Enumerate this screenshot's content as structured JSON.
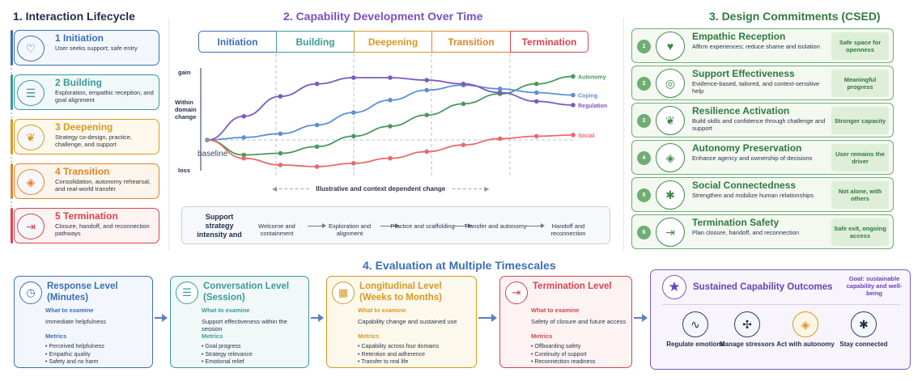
{
  "lifecycle": {
    "title": "1. Interaction Lifecycle",
    "stages": [
      {
        "name": "1 Initiation",
        "desc": "User seeks support; safe entry",
        "color": "#3a6fb8",
        "icon": "hearts-icon"
      },
      {
        "name": "2 Building",
        "desc": "Exploration, empathic reception, and goal alignment",
        "color": "#3a9a9b",
        "icon": "chat-bubbles-icon"
      },
      {
        "name": "3 Deepening",
        "desc": "Strategy co-design, practice, challenge, and support",
        "color": "#d89a1f",
        "icon": "seedling-icon"
      },
      {
        "name": "4 Transition",
        "desc": "Consolidation, autonomy rehearsal, and real-world transfer",
        "color": "#e2842c",
        "icon": "compass-icon"
      },
      {
        "name": "5 Termination",
        "desc": "Closure, handoff, and reconnection pathways",
        "color": "#d9434e",
        "icon": "exit-door-icon"
      }
    ]
  },
  "development": {
    "title": "2. Capability Development Over Time",
    "phases": [
      {
        "name": "Initiation",
        "color": "#3a6fb8"
      },
      {
        "name": "Building",
        "color": "#3a9a9b"
      },
      {
        "name": "Deepening",
        "color": "#d89a1f"
      },
      {
        "name": "Transition",
        "color": "#e2842c"
      },
      {
        "name": "Termination",
        "color": "#d9434e"
      }
    ],
    "y_gain": "gain",
    "y_label": "Within domain change",
    "y_loss": "loss",
    "baseline": "baseline",
    "footnote": "Illustrative and context dependent change",
    "strategy_label": "Support strategy intensity and",
    "strategies": [
      "Welcome and containment",
      "Exploration and alignment",
      "Practice and scaffolding",
      "Transfer and autonomy",
      "Handoff and reconnection"
    ]
  },
  "chart_data": {
    "type": "line",
    "x": [
      0,
      1,
      2,
      3,
      4,
      5,
      6,
      7,
      8,
      9,
      10
    ],
    "ylim": [
      -1,
      1
    ],
    "series": [
      {
        "name": "Autonomy",
        "color": "#4a9a5c",
        "values": [
          0,
          -0.18,
          -0.16,
          -0.08,
          0.06,
          0.22,
          0.4,
          0.58,
          0.74,
          0.9,
          1.02
        ]
      },
      {
        "name": "Coping",
        "color": "#5b8fd8",
        "values": [
          0,
          0.04,
          0.1,
          0.24,
          0.44,
          0.64,
          0.8,
          0.88,
          0.82,
          0.76,
          0.72
        ]
      },
      {
        "name": "Regulation",
        "color": "#7a5bc0",
        "values": [
          0,
          0.38,
          0.7,
          0.9,
          1.0,
          1.0,
          0.96,
          0.9,
          0.76,
          0.62,
          0.56
        ]
      },
      {
        "name": "Social",
        "color": "#e86a6a",
        "values": [
          0,
          -0.22,
          -0.3,
          -0.32,
          -0.28,
          -0.22,
          -0.14,
          -0.06,
          0.02,
          0.06,
          0.08
        ]
      }
    ]
  },
  "commitments": {
    "title": "3. Design Commitments (CSED)",
    "items": [
      {
        "num": "1",
        "name": "Empathic Reception",
        "desc": "Affirm experiences; reduce shame and isolation",
        "outcome": "Safe space for openness",
        "icon": "heart-hand-icon"
      },
      {
        "num": "2",
        "name": "Support Effectiveness",
        "desc": "Evidence-based, tailored, and context-sensitive help",
        "outcome": "Meaningful progress",
        "icon": "target-icon"
      },
      {
        "num": "3",
        "name": "Resilience Activation",
        "desc": "Build skills and confidence through challenge and support",
        "outcome": "Stronger capacity",
        "icon": "sprout-icon"
      },
      {
        "num": "4",
        "name": "Autonomy Preservation",
        "desc": "Enhance agency and ownership of decisions",
        "outcome": "User remains the driver",
        "icon": "compass-icon"
      },
      {
        "num": "5",
        "name": "Social Connectedness",
        "desc": "Strengthen and mobilize human relationships",
        "outcome": "Not alone, with others",
        "icon": "network-icon"
      },
      {
        "num": "6",
        "name": "Termination Safety",
        "desc": "Plan closure, handoff, and reconnection",
        "outcome": "Safe exit, ongoing access",
        "icon": "exit-door-icon"
      }
    ]
  },
  "evaluation": {
    "title": "4. Evaluation at Multiple Timescales",
    "what_label": "What to examine",
    "metrics_label": "Metrics",
    "levels": [
      {
        "name": "Response Level (Minutes)",
        "color": "#3a6fb8",
        "bg": "#f3f7fd",
        "icon": "clock-icon",
        "examine": "Immediate helpfulness",
        "metrics": [
          "Perceived helpfulness",
          "Empathic quality",
          "Safety and no harm"
        ]
      },
      {
        "name": "Conversation Level (Session)",
        "color": "#3a9a9b",
        "bg": "#f1f8f8",
        "icon": "chat-bubbles-icon",
        "examine": "Support effectiveness within the session",
        "metrics": [
          "Goal progress",
          "Strategy relevance",
          "Emotional relief"
        ]
      },
      {
        "name": "Longitudinal Level (Weeks to Months)",
        "color": "#d89a1f",
        "bg": "#fdf8ec",
        "icon": "calendar-icon",
        "examine": "Capability change and sustained use",
        "metrics": [
          "Capability across four domains",
          "Retention and adherence",
          "Transfer to real life"
        ]
      },
      {
        "name": "Termination Level",
        "color": "#d9434e",
        "bg": "#fdf3f3",
        "icon": "exit-door-icon",
        "examine": "Safety of closure and future access",
        "metrics": [
          "Offboarding safety",
          "Continuity of support",
          "Reconnection readiness"
        ]
      }
    ],
    "outcomes": {
      "title": "Sustained Capability Outcomes",
      "goal": "Goal: sustainable capability and well-being",
      "items": [
        {
          "label": "Regulate emotions",
          "icon": "wave-icon"
        },
        {
          "label": "Manage stressors",
          "icon": "arrows-icon"
        },
        {
          "label": "Act with autonomy",
          "icon": "compass-icon"
        },
        {
          "label": "Stay connected",
          "icon": "network-icon"
        }
      ]
    }
  }
}
